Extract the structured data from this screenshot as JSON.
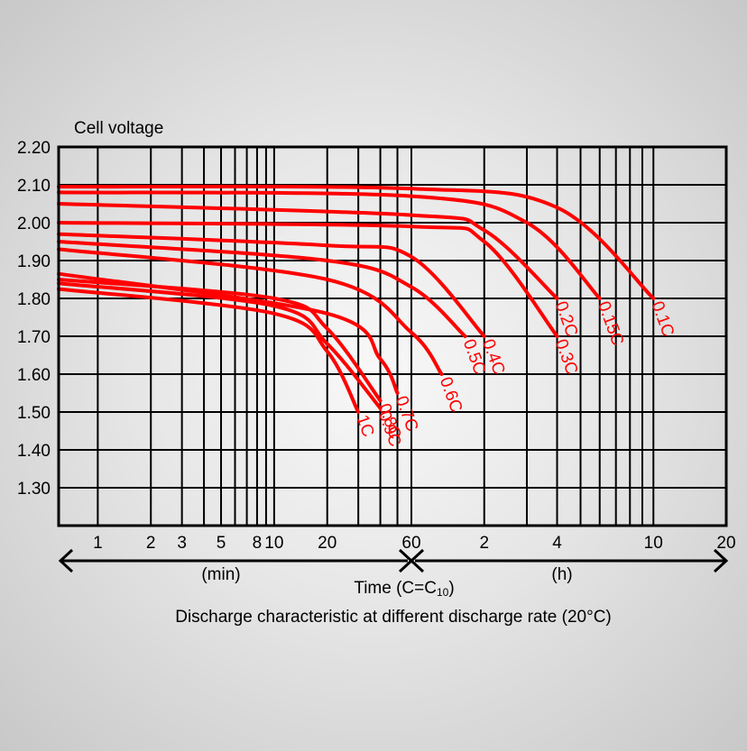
{
  "chart_data": {
    "type": "line",
    "title": "Discharge characteristic at different discharge rate (20°C)",
    "ylabel": "Cell voltage",
    "xlabel": "Time (C=C10)",
    "xlabel_parts": {
      "main": "Time (C=C",
      "sub": "10",
      "close": ")"
    },
    "x_scale": "log",
    "x_unit_left": "(min)",
    "x_unit_right": "(h)",
    "ylim": [
      1.2,
      2.2
    ],
    "y_ticks": [
      "2.20",
      "2.10",
      "2.00",
      "1.90",
      "1.80",
      "1.70",
      "1.60",
      "1.50",
      "1.40",
      "1.30"
    ],
    "x_ticks_min": [
      "1",
      "2",
      "3",
      "5",
      "8",
      "10",
      "20",
      "60"
    ],
    "x_ticks_h": [
      "2",
      "4",
      "10",
      "20"
    ],
    "line_color": "#ff0000",
    "grid": true,
    "series": [
      {
        "name": "1C",
        "points": [
          [
            1,
            1.825
          ],
          [
            10,
            1.76
          ],
          [
            20,
            1.66
          ],
          [
            30,
            1.5
          ]
        ]
      },
      {
        "name": "0.9C",
        "points": [
          [
            1,
            1.84
          ],
          [
            10,
            1.78
          ],
          [
            20,
            1.68
          ],
          [
            40,
            1.51
          ]
        ]
      },
      {
        "name": "0.8C",
        "points": [
          [
            1,
            1.85
          ],
          [
            10,
            1.8
          ],
          [
            20,
            1.72
          ],
          [
            40,
            1.53
          ]
        ]
      },
      {
        "name": "0.7C",
        "points": [
          [
            1,
            1.865
          ],
          [
            20,
            1.76
          ],
          [
            40,
            1.64
          ],
          [
            50,
            1.55
          ]
        ]
      },
      {
        "name": "0.6C",
        "points": [
          [
            1,
            1.93
          ],
          [
            20,
            1.85
          ],
          [
            60,
            1.71
          ],
          [
            80,
            1.6
          ]
        ]
      },
      {
        "name": "0.5C",
        "points": [
          [
            1,
            1.95
          ],
          [
            20,
            1.9
          ],
          [
            60,
            1.83
          ],
          [
            100,
            1.7
          ]
        ]
      },
      {
        "name": "0.4C",
        "points": [
          [
            1,
            1.97
          ],
          [
            20,
            1.94
          ],
          [
            60,
            1.91
          ],
          [
            120,
            1.7
          ]
        ]
      },
      {
        "name": "0.3C",
        "points": [
          [
            1,
            2.0
          ],
          [
            60,
            1.99
          ],
          [
            120,
            1.95
          ],
          [
            240,
            1.7
          ]
        ]
      },
      {
        "name": "0.2C",
        "points": [
          [
            1,
            2.05
          ],
          [
            60,
            2.02
          ],
          [
            120,
            1.98
          ],
          [
            240,
            1.8
          ]
        ]
      },
      {
        "name": "0.15C",
        "points": [
          [
            1,
            2.08
          ],
          [
            60,
            2.07
          ],
          [
            180,
            2.0
          ],
          [
            360,
            1.8
          ]
        ]
      },
      {
        "name": "0.1C",
        "points": [
          [
            1,
            2.095
          ],
          [
            60,
            2.09
          ],
          [
            240,
            2.04
          ],
          [
            600,
            1.8
          ]
        ]
      }
    ]
  }
}
